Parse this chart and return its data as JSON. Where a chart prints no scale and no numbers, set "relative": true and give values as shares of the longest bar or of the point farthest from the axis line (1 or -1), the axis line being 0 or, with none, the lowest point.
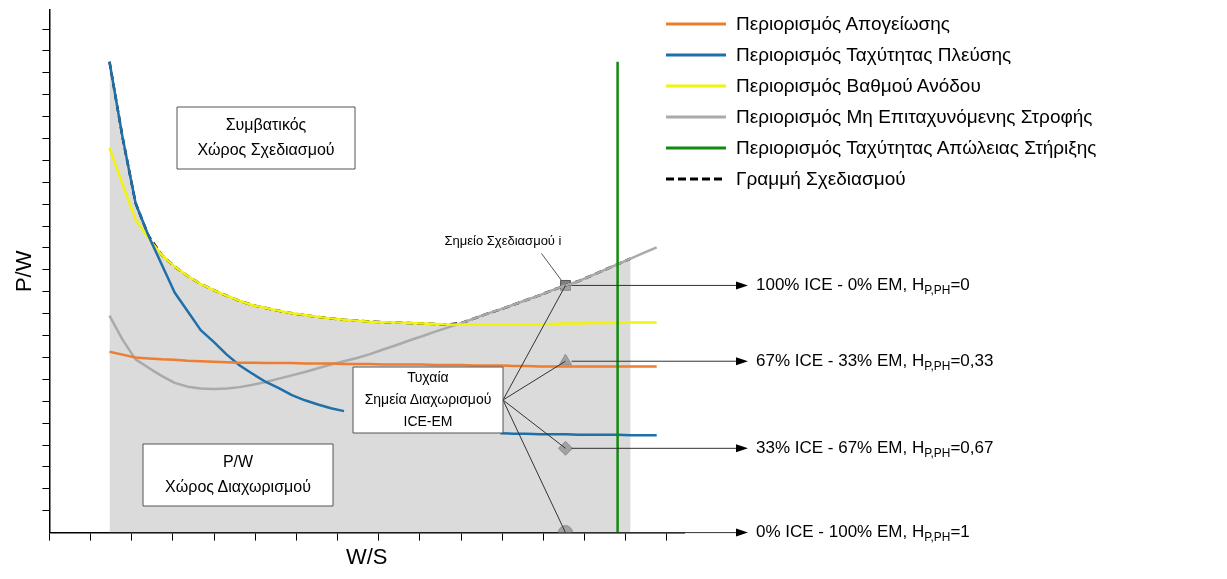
{
  "chart_data": {
    "type": "line",
    "relative": true,
    "xlabel": "W/S",
    "ylabel": "P/W",
    "legend": "top right",
    "categories": [
      null,
      null,
      null,
      null,
      null,
      null,
      null,
      null,
      null,
      null,
      null,
      null,
      null,
      null,
      null,
      null,
      null,
      null,
      null,
      null,
      null,
      null,
      null,
      null,
      null,
      null,
      null,
      null,
      null,
      null,
      null,
      null,
      null,
      null,
      null,
      null,
      null,
      null,
      null,
      null,
      null,
      null,
      null
    ],
    "series": [
      {
        "name": "Περιορισμός Απογείωσης",
        "color": "#ed7d31",
        "values": [
          0.384,
          0.378,
          0.372,
          0.37,
          0.368,
          0.367,
          0.365,
          0.364,
          0.363,
          0.362,
          0.361,
          0.361,
          0.36,
          0.36,
          0.36,
          0.359,
          0.359,
          0.359,
          0.358,
          0.358,
          0.358,
          0.357,
          0.357,
          0.357,
          0.357,
          0.356,
          0.356,
          0.356,
          0.355,
          0.355,
          0.355,
          0.354,
          0.354,
          0.353,
          0.353,
          0.353,
          0.353,
          0.353,
          0.353,
          0.353,
          0.353,
          0.353,
          0.353
        ]
      },
      {
        "name": "Περιορισμός Ταχύτητας Πλεύσης",
        "color": "#1f6fa8",
        "values": [
          1.0,
          0.84,
          0.7,
          0.63,
          0.57,
          0.51,
          0.47,
          0.43,
          0.405,
          0.378,
          0.355,
          0.337,
          0.32,
          0.307,
          0.292,
          0.281,
          0.272,
          0.264,
          0.258,
          null,
          null,
          null,
          null,
          null,
          null,
          null,
          null,
          null,
          null,
          null,
          0.211,
          0.21,
          0.21,
          0.209,
          0.209,
          0.209,
          0.208,
          0.208,
          0.208,
          0.208,
          0.207,
          0.207,
          0.207
        ]
      },
      {
        "name": "Περιορισμός Βαθμού Ανόδου",
        "color": "#f2f20a",
        "values": [
          0.817,
          0.74,
          0.665,
          0.625,
          0.59,
          0.565,
          0.545,
          0.528,
          0.515,
          0.503,
          0.492,
          0.483,
          0.477,
          0.471,
          0.466,
          0.462,
          0.458,
          0.455,
          0.452,
          0.45,
          0.448,
          0.447,
          0.446,
          0.445,
          0.444,
          0.443,
          0.442,
          0.442,
          0.442,
          0.442,
          0.442,
          0.442,
          0.442,
          0.442,
          0.443,
          0.444,
          0.444,
          0.445,
          0.445,
          0.445,
          0.446,
          0.446,
          0.446
        ]
      },
      {
        "name": "Περιορισμός Μη Επιταχυνόμενης Στροφής",
        "color": "#aaaaaa",
        "values": [
          0.461,
          0.41,
          0.368,
          0.35,
          0.333,
          0.318,
          0.31,
          0.306,
          0.305,
          0.306,
          0.309,
          0.314,
          0.32,
          0.327,
          0.334,
          0.341,
          0.349,
          0.357,
          0.364,
          0.371,
          0.379,
          0.389,
          0.398,
          0.408,
          0.417,
          0.427,
          0.436,
          0.445,
          0.455,
          0.465,
          0.474,
          0.484,
          0.494,
          0.504,
          0.515,
          0.525,
          0.534,
          0.546,
          0.558,
          0.57,
          0.582,
          0.594,
          0.606
        ]
      },
      {
        "name": "Γραμμή Σχεδιασμού",
        "type": "area",
        "color": "#000000",
        "line_style": "dashed",
        "values": [
          1.0,
          0.84,
          0.7,
          0.63,
          0.59,
          0.565,
          0.545,
          0.528,
          0.515,
          0.503,
          0.492,
          0.483,
          0.477,
          0.471,
          0.466,
          0.462,
          0.458,
          0.455,
          0.452,
          0.45,
          0.448,
          0.447,
          0.446,
          0.445,
          0.444,
          0.443,
          0.442,
          0.445,
          0.455,
          0.465,
          0.474,
          0.484,
          0.494,
          0.504,
          0.515,
          0.525,
          0.534,
          0.546,
          0.558,
          0.57,
          0.582,
          null,
          null
        ]
      },
      {
        "type": "line",
        "marker": "square",
        "color": "#7f7f7f",
        "values": [
          null,
          null,
          null,
          null,
          null,
          null,
          null,
          null,
          null,
          null,
          null,
          null,
          null,
          null,
          null,
          null,
          null,
          null,
          null,
          null,
          null,
          null,
          null,
          null,
          null,
          null,
          null,
          null,
          null,
          null,
          null,
          null,
          null,
          null,
          null,
          0.525,
          null,
          null,
          null,
          null,
          null,
          null,
          null
        ]
      },
      {
        "type": "line",
        "marker": "triangle",
        "color": "#7f7f7f",
        "values": [
          null,
          null,
          null,
          null,
          null,
          null,
          null,
          null,
          null,
          null,
          null,
          null,
          null,
          null,
          null,
          null,
          null,
          null,
          null,
          null,
          null,
          null,
          null,
          null,
          null,
          null,
          null,
          null,
          null,
          null,
          null,
          null,
          null,
          null,
          null,
          0.364,
          null,
          null,
          null,
          null,
          null,
          null,
          null
        ]
      },
      {
        "type": "line",
        "marker": "diamond",
        "color": "#7f7f7f",
        "values": [
          null,
          null,
          null,
          null,
          null,
          null,
          null,
          null,
          null,
          null,
          null,
          null,
          null,
          null,
          null,
          null,
          null,
          null,
          null,
          null,
          null,
          null,
          null,
          null,
          null,
          null,
          null,
          null,
          null,
          null,
          null,
          null,
          null,
          null,
          null,
          0.179,
          null,
          null,
          null,
          null,
          null,
          null,
          null
        ]
      },
      {
        "type": "line",
        "marker": "circle",
        "color": "#7f7f7f",
        "values": [
          null,
          null,
          null,
          null,
          null,
          null,
          null,
          null,
          null,
          null,
          null,
          null,
          null,
          null,
          null,
          null,
          null,
          null,
          null,
          null,
          null,
          null,
          null,
          null,
          null,
          null,
          null,
          null,
          null,
          null,
          null,
          null,
          null,
          null,
          null,
          0,
          null,
          null,
          null,
          null,
          null,
          null,
          null
        ]
      }
    ],
    "ref_lines": [
      {
        "axis": "x",
        "label": "Περιορισμός Ταχύτητας Απώλειας Στήριξης",
        "color": "#128a12"
      }
    ],
    "annotations": [
      "Συμβατικός\nΧώρος Σχεδιασμού",
      "P/W\nΧώρος Διαχωρισμού",
      "Τυχαία\nΣημεία Διαχωρισμού\nICE-EM",
      "Σημείο Σχεδιασμού i",
      "100% ICE - 0% EM, H$_{P,PH}$=0",
      "67% ICE - 33% EM, H$_{P,PH}$=0,33",
      "33% ICE - 67% EM, H$_{P,PH}$=0,67",
      "0% ICE - 100% EM, H$_{P,PH}$=1"
    ]
  }
}
